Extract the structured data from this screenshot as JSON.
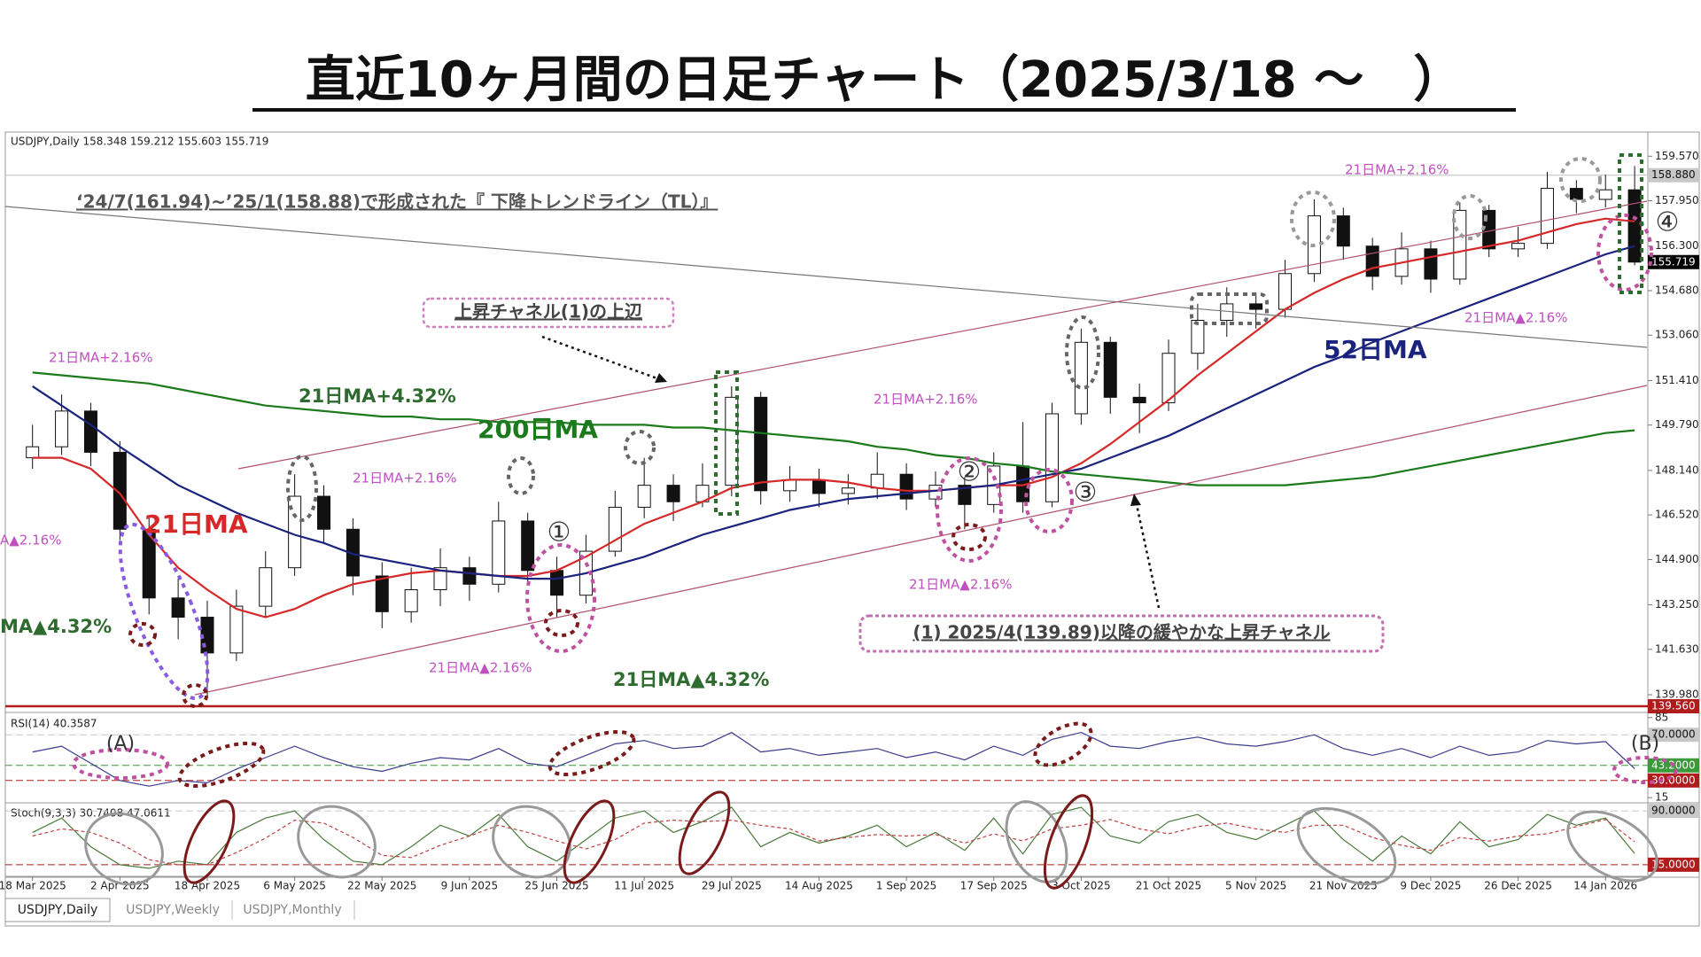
{
  "title": "直近10ヶ月間の日足チャート（2025/3/18 ～　）",
  "annotations": [
    "‘24/7(161.94)~’25/1(158.88)で形成された『 下降トレンドライン（TL）』",
    "上昇チャネル(1)の上辺",
    "(1) 2025/4(139.89)以降の緩やかな上昇チャネル",
    "21日MA+2.16%",
    "21日MA+2.16%",
    "21日MA+2.16%",
    "21日MA+2.16%",
    "21日MA▲2.16%",
    "21日MA▲2.16%",
    "21日MA▲2.16%",
    "A▲2.16%",
    "21日MA+4.32%",
    "21日MA▲4.32%",
    "MA▲4.32%",
    "①",
    "②",
    "③",
    "④",
    "(A)",
    "(B)"
  ],
  "tabs": [
    "USDJPY,Daily",
    "USDJPY,Weekly",
    "USDJPY,Monthly"
  ],
  "chart_data": [
    {
      "type": "candlestick",
      "header": "USDJPY,Daily 158.348 159.212 155.603 155.719",
      "categories": [
        "18 Mar 2025",
        null,
        null,
        "2 Apr 2025",
        null,
        null,
        "18 Apr 2025",
        null,
        null,
        "6 May 2025",
        null,
        null,
        "22 May 2025",
        null,
        null,
        "9 Jun 2025",
        null,
        null,
        "25 Jun 2025",
        null,
        null,
        "11 Jul 2025",
        null,
        null,
        "29 Jul 2025",
        null,
        null,
        "14 Aug 2025",
        null,
        null,
        "1 Sep 2025",
        null,
        null,
        "17 Sep 2025",
        null,
        null,
        "3 Oct 2025",
        null,
        null,
        "21 Oct 2025",
        null,
        null,
        "5 Nov 2025",
        null,
        null,
        "21 Nov 2025",
        null,
        null,
        "9 Dec 2025",
        null,
        null,
        "26 Dec 2025",
        null,
        null,
        "14 Jan 2026",
        null
      ],
      "open": [
        148.6,
        149.0,
        150.3,
        148.8,
        146.0,
        143.5,
        142.8,
        141.5,
        143.2,
        144.6,
        147.2,
        146.0,
        144.3,
        143.0,
        143.8,
        144.6,
        144.0,
        146.3,
        144.5,
        143.6,
        145.2,
        146.8,
        147.6,
        147.0,
        147.6,
        150.8,
        147.4,
        147.8,
        147.3,
        147.5,
        148.0,
        147.1,
        147.6,
        146.9,
        148.3,
        147.0,
        150.2,
        152.8,
        150.8,
        150.6,
        152.4,
        153.6,
        154.2,
        154.0,
        155.3,
        157.4,
        156.3,
        155.2,
        156.2,
        155.1,
        157.6,
        156.2,
        156.4,
        158.4,
        158.0,
        158.348
      ],
      "high": [
        149.8,
        150.9,
        150.6,
        149.2,
        146.4,
        144.2,
        143.4,
        143.8,
        145.2,
        148.0,
        147.6,
        146.4,
        144.8,
        144.6,
        145.3,
        145.0,
        147.0,
        146.6,
        145.0,
        145.8,
        147.4,
        148.6,
        148.0,
        148.4,
        151.2,
        151.0,
        148.3,
        148.2,
        148.0,
        148.8,
        148.4,
        148.1,
        147.9,
        148.8,
        149.9,
        150.6,
        153.3,
        153.0,
        151.3,
        152.9,
        154.2,
        154.8,
        154.6,
        155.8,
        158.0,
        157.7,
        156.6,
        156.8,
        156.5,
        157.9,
        157.8,
        157.0,
        159.0,
        158.7,
        158.9,
        159.212
      ],
      "low": [
        148.2,
        148.7,
        148.3,
        145.6,
        142.9,
        142.0,
        139.89,
        141.2,
        142.8,
        144.3,
        145.5,
        143.6,
        142.4,
        142.6,
        143.2,
        143.4,
        143.7,
        144.0,
        142.8,
        143.3,
        145.0,
        146.4,
        146.3,
        146.8,
        147.2,
        146.9,
        147.0,
        146.8,
        146.9,
        147.1,
        146.7,
        146.8,
        146.0,
        146.6,
        146.6,
        146.8,
        149.8,
        150.2,
        149.5,
        150.3,
        151.8,
        153.0,
        153.3,
        153.7,
        155.0,
        155.8,
        154.7,
        154.9,
        154.6,
        154.9,
        155.9,
        155.9,
        156.2,
        157.5,
        157.7,
        155.603
      ],
      "close": [
        149.0,
        150.3,
        148.8,
        146.0,
        143.5,
        142.8,
        141.5,
        143.2,
        144.6,
        147.2,
        146.0,
        144.3,
        143.0,
        143.8,
        144.6,
        144.0,
        146.3,
        144.5,
        143.6,
        145.2,
        146.8,
        147.6,
        147.0,
        147.6,
        150.8,
        147.4,
        147.8,
        147.3,
        147.5,
        148.0,
        147.1,
        147.6,
        146.9,
        148.3,
        147.0,
        150.2,
        152.8,
        150.8,
        150.6,
        152.4,
        153.6,
        154.2,
        154.0,
        155.3,
        157.4,
        156.3,
        155.2,
        156.2,
        155.1,
        157.6,
        156.2,
        156.4,
        158.4,
        158.0,
        158.348,
        155.719
      ],
      "series": [
        {
          "name": "21日MA",
          "color": "#d62828",
          "values": [
            148.6,
            148.6,
            148.2,
            147.3,
            145.8,
            144.6,
            143.8,
            143.1,
            142.8,
            143.1,
            143.6,
            144.0,
            144.2,
            144.4,
            144.5,
            144.4,
            144.3,
            144.3,
            144.5,
            145.0,
            145.6,
            146.2,
            146.6,
            147.0,
            147.5,
            147.7,
            147.8,
            147.8,
            147.7,
            147.5,
            147.4,
            147.4,
            147.5,
            147.6,
            147.6,
            147.9,
            148.4,
            149.1,
            149.9,
            150.7,
            151.6,
            152.4,
            153.2,
            154.0,
            154.6,
            155.1,
            155.5,
            155.7,
            155.9,
            156.1,
            156.3,
            156.5,
            156.8,
            157.1,
            157.3,
            157.2
          ]
        },
        {
          "name": "52日MA",
          "color": "#1a237e",
          "values": [
            151.2,
            150.5,
            149.8,
            149.0,
            148.3,
            147.6,
            147.1,
            146.6,
            146.2,
            145.8,
            145.5,
            145.1,
            144.9,
            144.7,
            144.5,
            144.4,
            144.3,
            144.2,
            144.2,
            144.4,
            144.7,
            145.0,
            145.4,
            145.8,
            146.1,
            146.4,
            146.7,
            146.9,
            147.1,
            147.2,
            147.3,
            147.4,
            147.5,
            147.6,
            147.8,
            148.0,
            148.2,
            148.6,
            149.0,
            149.4,
            149.9,
            150.4,
            150.9,
            151.4,
            151.9,
            152.3,
            152.8,
            153.2,
            153.6,
            154.0,
            154.4,
            154.8,
            155.2,
            155.6,
            156.0,
            156.3
          ]
        },
        {
          "name": "200日MA",
          "color": "#1b7a1b",
          "values": [
            151.7,
            151.6,
            151.5,
            151.4,
            151.3,
            151.1,
            150.9,
            150.7,
            150.5,
            150.4,
            150.3,
            150.2,
            150.1,
            150.1,
            150.0,
            150.0,
            149.9,
            149.9,
            149.9,
            149.8,
            149.8,
            149.8,
            149.7,
            149.7,
            149.6,
            149.5,
            149.4,
            149.3,
            149.2,
            149.0,
            148.9,
            148.7,
            148.6,
            148.4,
            148.3,
            148.1,
            148.0,
            147.9,
            147.8,
            147.7,
            147.6,
            147.6,
            147.6,
            147.6,
            147.7,
            147.8,
            147.9,
            148.1,
            148.3,
            148.5,
            148.7,
            148.9,
            149.1,
            149.3,
            149.5,
            149.6
          ]
        }
      ],
      "ylim": [
        139.4,
        160.45
      ],
      "yticks": [
        {
          "value": 139.98,
          "label": "139.980"
        },
        {
          "value": 141.63,
          "label": "141.630"
        },
        {
          "value": 143.25,
          "label": "143.250"
        },
        {
          "value": 144.9,
          "label": "144.900"
        },
        {
          "value": 146.52,
          "label": "146.520"
        },
        {
          "value": 148.14,
          "label": "148.140"
        },
        {
          "value": 149.79,
          "label": "149.790"
        },
        {
          "value": 151.41,
          "label": "151.410"
        },
        {
          "value": 153.06,
          "label": "153.060"
        },
        {
          "value": 154.68,
          "label": "154.680"
        },
        {
          "value": 156.3,
          "label": "156.300"
        },
        {
          "value": 157.95,
          "label": "157.950"
        },
        {
          "value": 159.57,
          "label": "159.570"
        }
      ],
      "price_labels": [
        {
          "value": 158.88,
          "label": "158.880",
          "color": "#c8c8c8",
          "line": true
        },
        {
          "value": 155.719,
          "label": "155.719",
          "color": "#000000",
          "line": false
        },
        {
          "value": 139.56,
          "label": "139.560",
          "color": "#b01c1c",
          "line": true
        }
      ]
    },
    {
      "type": "line",
      "header": "RSI(14) 40.3587",
      "series": [
        {
          "color": "#3a3a8c",
          "values": [
            55,
            60,
            45,
            30,
            25,
            30,
            28,
            40,
            50,
            60,
            50,
            42,
            38,
            45,
            50,
            48,
            58,
            45,
            42,
            52,
            62,
            65,
            58,
            60,
            72,
            55,
            58,
            52,
            55,
            58,
            50,
            55,
            48,
            60,
            52,
            66,
            72,
            60,
            58,
            64,
            68,
            62,
            60,
            64,
            70,
            58,
            52,
            58,
            50,
            60,
            52,
            55,
            65,
            62,
            64,
            40.3587
          ]
        }
      ],
      "ylim": [
        12,
        88
      ],
      "yticks": [
        85,
        15
      ],
      "levels": [
        {
          "value": 70,
          "label": "70.0000",
          "color": "#c8c8c8"
        },
        {
          "value": 43.2,
          "label": "43.2000",
          "color": "#3a9a3a"
        },
        {
          "value": 30,
          "label": "30.0000",
          "color": "#b01c1c"
        }
      ]
    },
    {
      "type": "line",
      "header": "Stoch(9,3,3) 30.7408 47.0611",
      "series": [
        {
          "color": "#4a7a3a",
          "values": [
            60,
            80,
            40,
            15,
            10,
            20,
            15,
            60,
            80,
            90,
            50,
            20,
            15,
            40,
            70,
            55,
            85,
            40,
            20,
            50,
            80,
            90,
            60,
            75,
            95,
            40,
            60,
            45,
            55,
            70,
            40,
            60,
            35,
            80,
            30,
            85,
            95,
            55,
            45,
            75,
            85,
            60,
            50,
            70,
            90,
            50,
            20,
            55,
            30,
            75,
            40,
            50,
            85,
            70,
            80,
            30.7408
          ]
        },
        {
          "color": "#c04040",
          "style": "dashed",
          "values": [
            55,
            65,
            60,
            45,
            22,
            15,
            15,
            32,
            52,
            77,
            73,
            53,
            28,
            25,
            42,
            55,
            70,
            60,
            48,
            37,
            50,
            73,
            77,
            75,
            77,
            70,
            65,
            48,
            53,
            57,
            55,
            57,
            45,
            58,
            48,
            65,
            70,
            78,
            65,
            58,
            68,
            73,
            65,
            60,
            70,
            70,
            53,
            42,
            35,
            53,
            48,
            55,
            58,
            68,
            78,
            47.0611
          ]
        }
      ],
      "ylim": [
        0,
        100
      ],
      "yticks": [],
      "levels": [
        {
          "value": 90,
          "label": "90.0000",
          "color": "#c8c8c8"
        },
        {
          "value": 15,
          "label": "15.0000",
          "color": "#b01c1c"
        }
      ]
    }
  ]
}
